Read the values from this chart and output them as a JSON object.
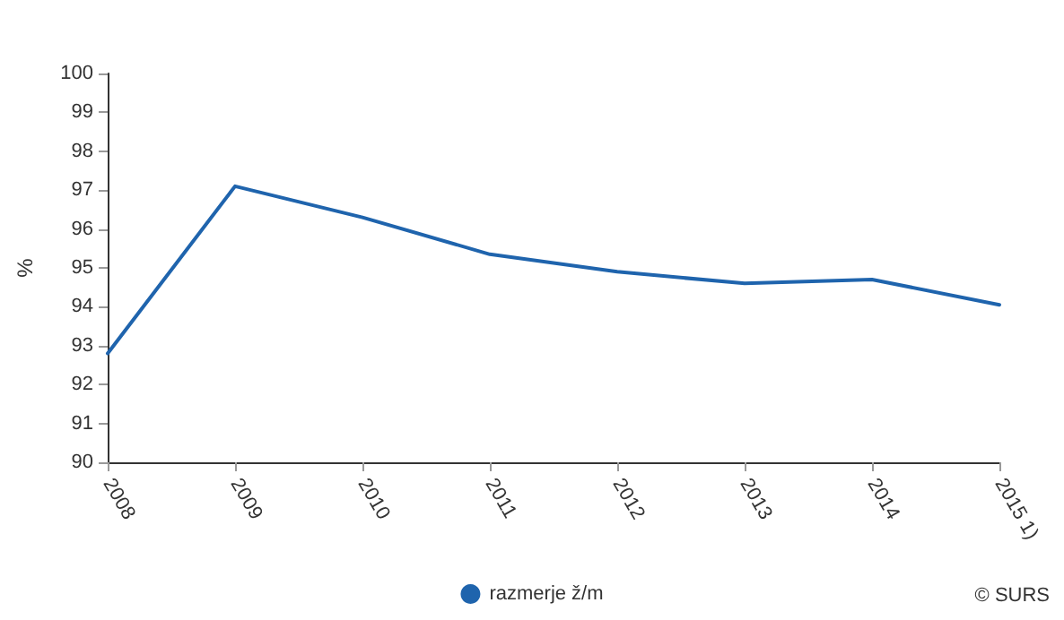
{
  "chart_data": {
    "type": "line",
    "ylabel": "%",
    "categories": [
      "2008",
      "2009",
      "2010",
      "2011",
      "2012",
      "2013",
      "2014",
      "2015 1)"
    ],
    "series": [
      {
        "name": "razmerje ž/m",
        "color": "#1f64ad",
        "values": [
          92.8,
          97.1,
          96.3,
          95.35,
          94.9,
          94.6,
          94.7,
          94.05
        ]
      }
    ],
    "ylim": [
      90,
      100
    ],
    "yticks": [
      90,
      91,
      92,
      93,
      94,
      95,
      96,
      97,
      98,
      99,
      100
    ],
    "grid": false,
    "legend": "bottom",
    "marker": "none",
    "line_style": "solid",
    "annotations": [
      "© SURS"
    ]
  }
}
